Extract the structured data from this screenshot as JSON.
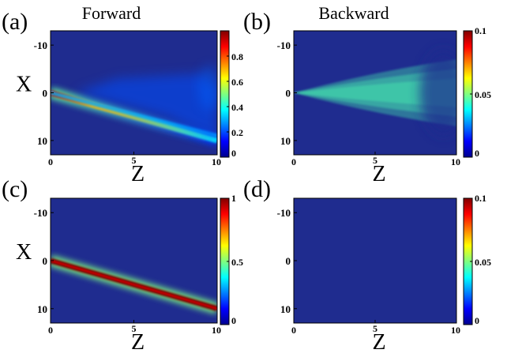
{
  "colors": {
    "background": "#ffffff",
    "colormap": [
      "#00008f",
      "#0000ff",
      "#00ffff",
      "#ffff00",
      "#ff0000",
      "#800000"
    ],
    "plot_background": "#1f2c8f"
  },
  "chart_data": [
    {
      "panel_label": "(a)",
      "title": "Forward",
      "type": "heatmap",
      "xlabel": "Z",
      "ylabel": "X",
      "xlim": [
        0,
        10
      ],
      "ylim": [
        -13,
        13
      ],
      "y_reversed": true,
      "xticks": [
        "0",
        "5",
        "10"
      ],
      "yticks": [
        "-10",
        "0",
        "10"
      ],
      "colorbar": {
        "range": [
          0,
          1
        ],
        "ticks": [
          "0",
          "0.2",
          "0.4",
          "0.6",
          "0.8"
        ]
      },
      "features": [
        {
          "kind": "beam",
          "z_start": 0,
          "x_start": 0,
          "z_end": 10,
          "x_end": 10,
          "peak": 0.95,
          "decay_to": 0.35
        },
        {
          "kind": "secondary_beam",
          "z_start": 0,
          "x_start": 0,
          "z_end": 10,
          "x_end": 9,
          "peak": 0.3
        },
        {
          "kind": "diffuse_lobe",
          "z_start": 1.5,
          "z_end": 10,
          "x_min": -3,
          "x_max": 10,
          "level": 0.1
        }
      ]
    },
    {
      "panel_label": "(b)",
      "title": "Backward",
      "type": "heatmap",
      "xlabel": "Z",
      "ylabel": "",
      "xlim": [
        0,
        10
      ],
      "ylim": [
        -13,
        13
      ],
      "y_reversed": true,
      "xticks": [
        "0",
        "5",
        "10"
      ],
      "yticks": [
        "-10",
        "0",
        "10"
      ],
      "colorbar": {
        "range": [
          0,
          0.1
        ],
        "ticks": [
          "0",
          "0.05",
          "0.1"
        ]
      },
      "features": [
        {
          "kind": "fan_lobes",
          "z_start": 0,
          "z_end": 10,
          "x_spread_top": -7,
          "x_spread_bottom": 7,
          "level": 0.015
        }
      ]
    },
    {
      "panel_label": "(c)",
      "title": "",
      "type": "heatmap",
      "xlabel": "Z",
      "ylabel": "X",
      "xlim": [
        0,
        10
      ],
      "ylim": [
        -13,
        13
      ],
      "y_reversed": true,
      "xticks": [
        "0",
        "5",
        "10"
      ],
      "yticks": [
        "-10",
        "0",
        "10"
      ],
      "colorbar": {
        "range": [
          0,
          1
        ],
        "ticks": [
          "0",
          "0.5",
          "1"
        ]
      },
      "features": [
        {
          "kind": "beam",
          "z_start": 0,
          "x_start": 0,
          "z_end": 10,
          "x_end": 10,
          "peak": 1.0,
          "decay_to": 1.0
        }
      ]
    },
    {
      "panel_label": "(d)",
      "title": "",
      "type": "heatmap",
      "xlabel": "Z",
      "ylabel": "",
      "xlim": [
        0,
        10
      ],
      "ylim": [
        -13,
        13
      ],
      "y_reversed": true,
      "xticks": [
        "0",
        "5",
        "10"
      ],
      "yticks": [
        "-10",
        "0",
        "10"
      ],
      "colorbar": {
        "range": [
          0,
          0.1
        ],
        "ticks": [
          "0",
          "0.05",
          "0.1"
        ]
      },
      "features": []
    }
  ]
}
